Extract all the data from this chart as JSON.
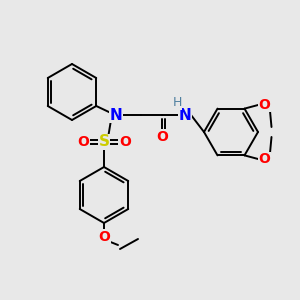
{
  "background_color": "#e8e8e8",
  "atom_colors": {
    "N": "#0000ff",
    "O": "#ff0000",
    "S": "#cccc00",
    "C": "#000000",
    "H": "#5080a0"
  },
  "figsize": [
    3.0,
    3.0
  ],
  "dpi": 100
}
